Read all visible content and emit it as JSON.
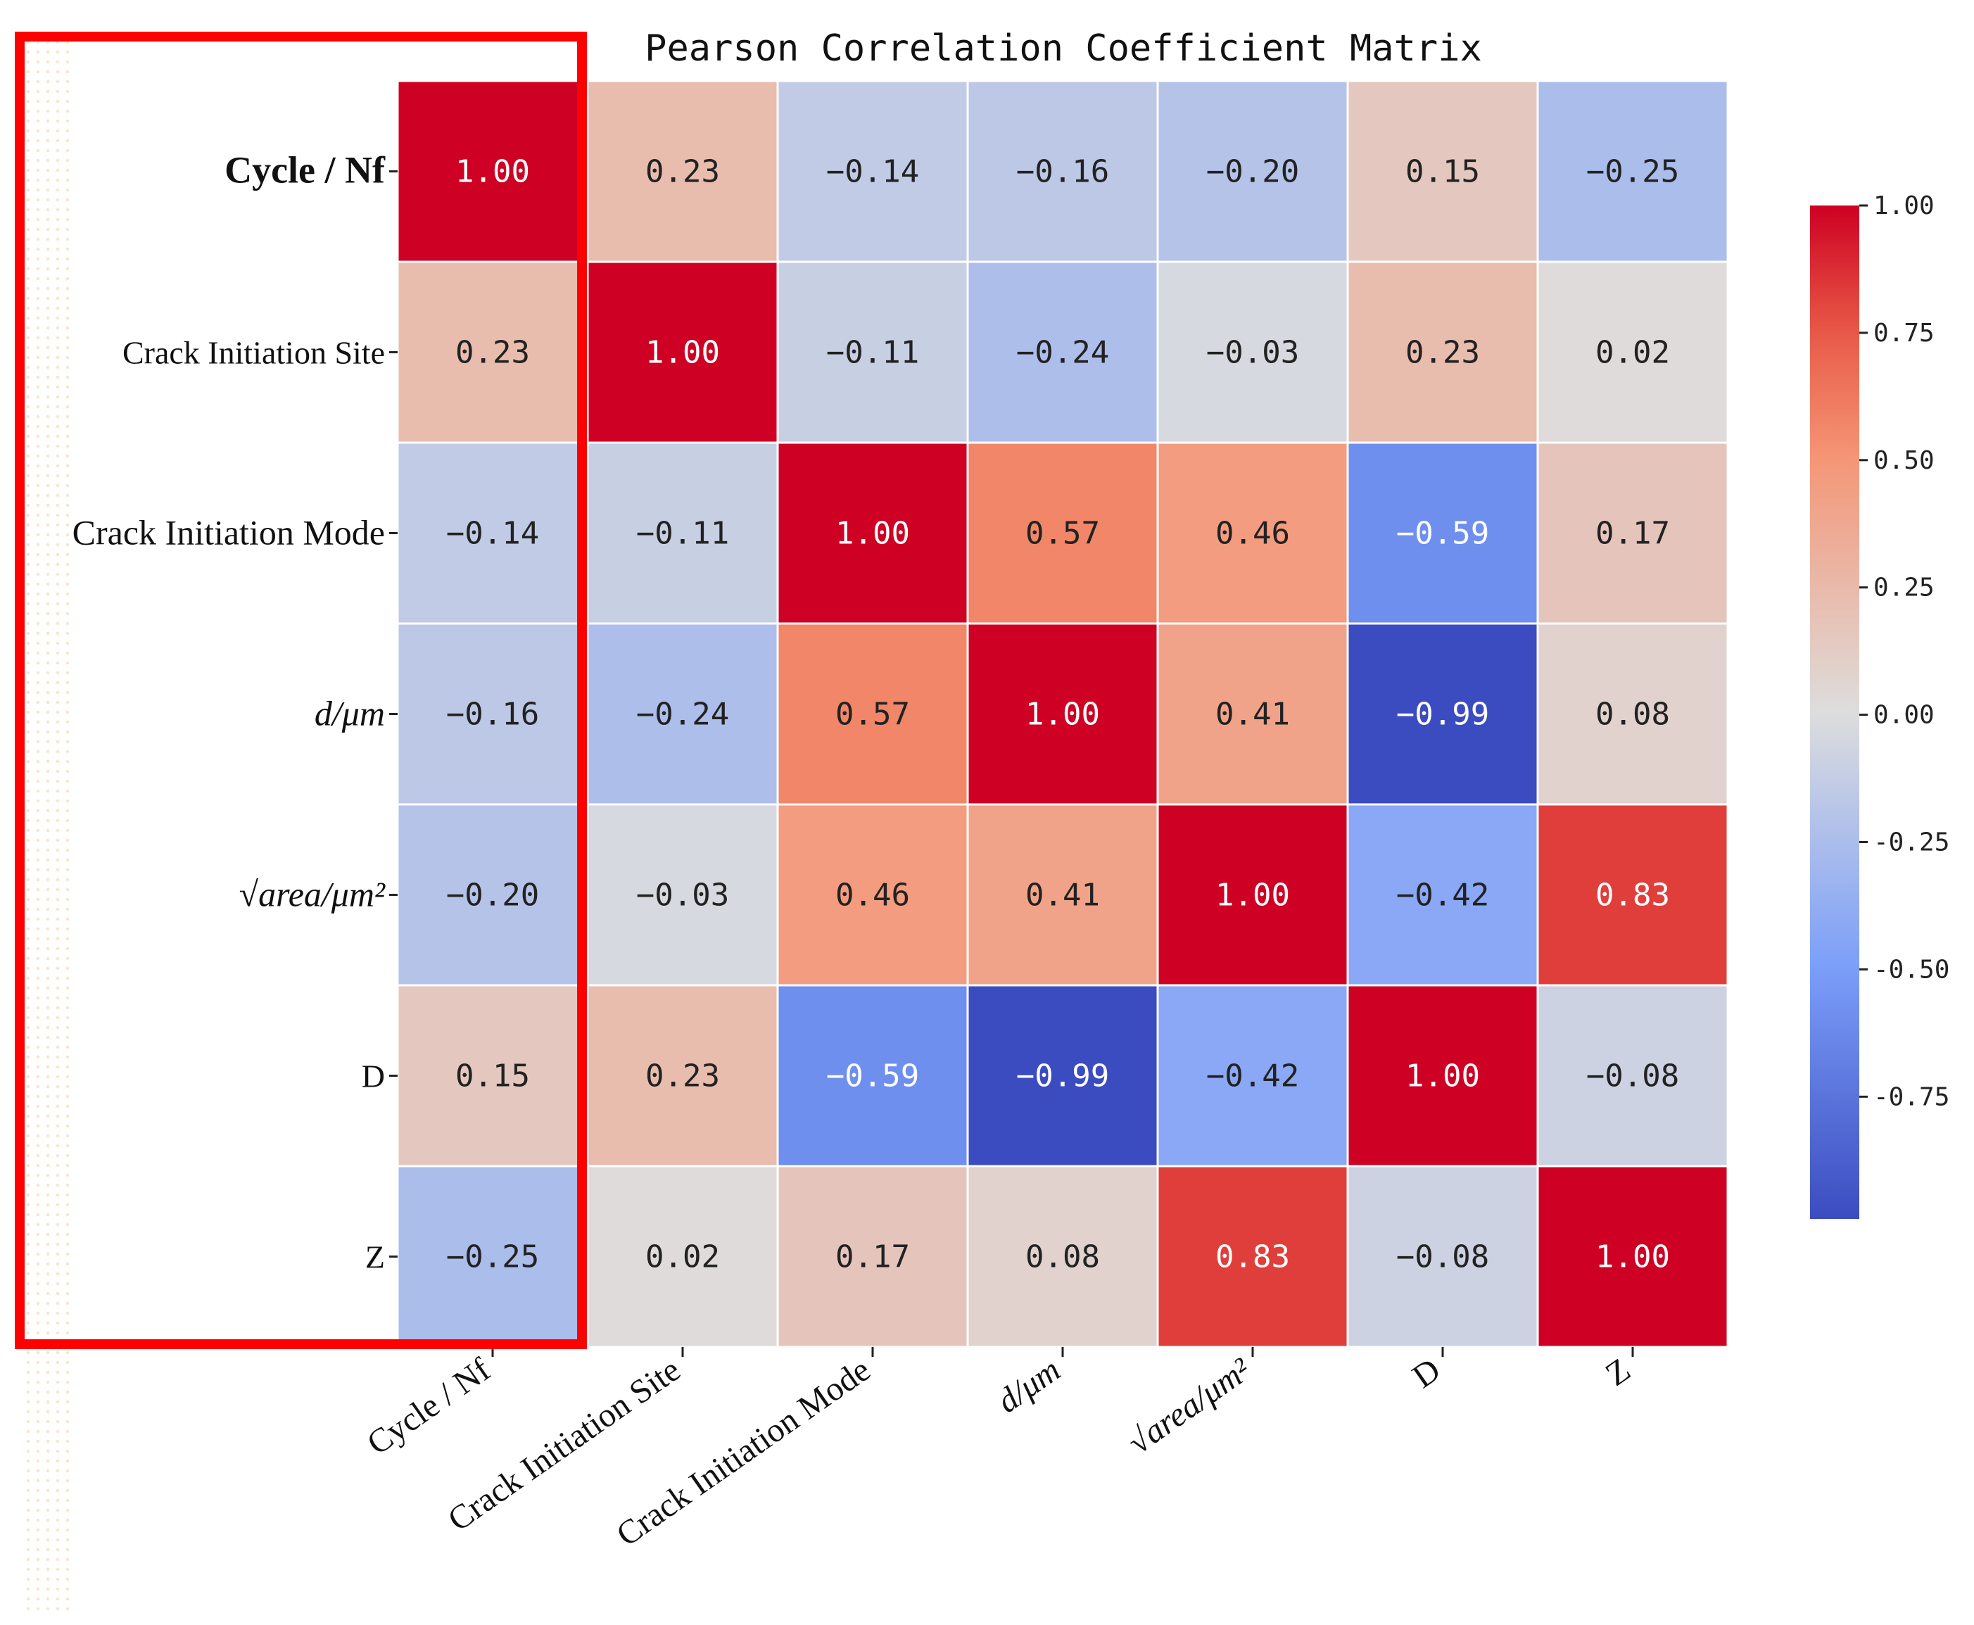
{
  "chart_data": {
    "type": "heatmap",
    "title": "Pearson Correlation Coefficient Matrix",
    "row_labels": [
      "Cycle / Nf",
      "Crack Initiation Site",
      "Crack Initiation Mode",
      "d/μm",
      "√area/μm²",
      "D",
      "Z"
    ],
    "col_labels": [
      "Cycle / Nf",
      "Crack Initiation Site",
      "Crack Initiation Mode",
      "d/μm",
      "√area/μm²",
      "D",
      "Z"
    ],
    "values": [
      [
        1.0,
        0.23,
        -0.14,
        -0.16,
        -0.2,
        0.15,
        -0.25
      ],
      [
        0.23,
        1.0,
        -0.11,
        -0.24,
        -0.03,
        0.23,
        0.02
      ],
      [
        -0.14,
        -0.11,
        1.0,
        0.57,
        0.46,
        -0.59,
        0.17
      ],
      [
        -0.16,
        -0.24,
        0.57,
        1.0,
        0.41,
        -0.99,
        0.08
      ],
      [
        -0.2,
        -0.03,
        0.46,
        0.41,
        1.0,
        -0.42,
        0.83
      ],
      [
        0.15,
        0.23,
        -0.59,
        -0.99,
        -0.42,
        1.0,
        -0.08
      ],
      [
        -0.25,
        0.02,
        0.17,
        0.08,
        0.83,
        -0.08,
        1.0
      ]
    ],
    "value_format": "2-decimal",
    "colorbar": {
      "colormap": "coolwarm",
      "range": [
        -0.99,
        1.0
      ],
      "ticks": [
        1.0,
        0.75,
        0.5,
        0.25,
        0.0,
        -0.25,
        -0.5,
        -0.75
      ],
      "tick_labels": [
        "1.00",
        "0.75",
        "0.50",
        "0.25",
        "0.00",
        "-0.25",
        "-0.50",
        "-0.75"
      ]
    },
    "highlight": {
      "column": "Cycle / Nf",
      "color": "#ff0000"
    }
  }
}
